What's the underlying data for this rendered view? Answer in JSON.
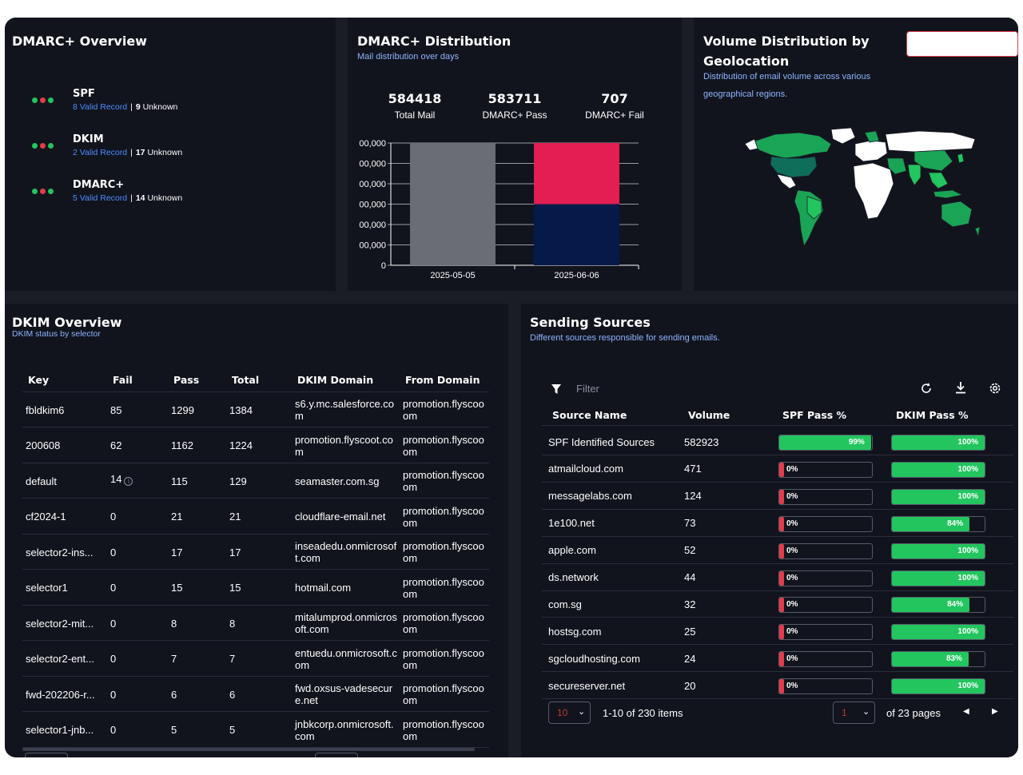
{
  "overview": {
    "title": "DMARC+ Overview",
    "items": [
      {
        "name": "SPF",
        "valid": "8 Valid Record",
        "unknown_count": "9",
        "unknown_label": "Unknown"
      },
      {
        "name": "DKIM",
        "valid": "2 Valid Record",
        "unknown_count": "17",
        "unknown_label": "Unknown"
      },
      {
        "name": "DMARC+",
        "valid": "5 Valid Record",
        "unknown_count": "14",
        "unknown_label": "Unknown"
      }
    ],
    "dot_colors": [
      "#22c55e",
      "#e23c4a",
      "#22c55e"
    ]
  },
  "distribution": {
    "title": "DMARC+ Distribution",
    "subtitle": "Mail distribution over days",
    "stats": [
      {
        "value": "584418",
        "label": "Total Mail"
      },
      {
        "value": "583711",
        "label": "DMARC+ Pass"
      },
      {
        "value": "707",
        "label": "DMARC+ Fail"
      }
    ]
  },
  "chart_data": {
    "type": "bar",
    "categories": [
      "2025-05-05",
      "2025-06-06"
    ],
    "series": [
      {
        "values": [
          600000,
          0
        ],
        "color": "#6b6d75"
      },
      {
        "values": [
          0,
          300000
        ],
        "color": "#061a4a"
      },
      {
        "values": [
          0,
          300000
        ],
        "color": "#e21e52"
      }
    ],
    "yticks": [
      "0",
      "00,000",
      "00,000",
      "00,000",
      "00,000",
      "00,000",
      "00,000"
    ],
    "ylim": [
      0,
      600000
    ],
    "stacked": true
  },
  "geo": {
    "title_line1": "Volume Distribution by",
    "title_line2": "Geolocation",
    "subtitle_line1": "Distribution of email volume across various",
    "subtitle_line2": "geographical regions."
  },
  "dkim": {
    "title": "DKIM Overview",
    "subtitle": "DKIM status by selector",
    "headers": [
      "Key",
      "Fail",
      "Pass",
      "Total",
      "DKIM Domain",
      "From Domain"
    ],
    "rows": [
      [
        "fbldkim6",
        "85",
        "1299",
        "1384",
        "s6.y.mc.salesforce.com",
        "promotion.flyscoo om"
      ],
      [
        "200608",
        "62",
        "1162",
        "1224",
        "promotion.flyscoot.com",
        "promotion.flyscoo om"
      ],
      [
        "default",
        "14",
        "115",
        "129",
        "seamaster.com.sg",
        "promotion.flyscoo om"
      ],
      [
        "cf2024-1",
        "0",
        "21",
        "21",
        "cloudflare-email.net",
        "promotion.flyscoo om"
      ],
      [
        "selector2-ins...",
        "0",
        "17",
        "17",
        "inseadedu.onmicrosoft.com",
        "promotion.flyscoo om"
      ],
      [
        "selector1",
        "0",
        "15",
        "15",
        "hotmail.com",
        "promotion.flyscoo om"
      ],
      [
        "selector2-mit...",
        "0",
        "8",
        "8",
        "mitalumprod.onmicrosoft.com",
        "promotion.flyscoo om"
      ],
      [
        "selector2-ent...",
        "0",
        "7",
        "7",
        "entuedu.onmicrosoft.com",
        "promotion.flyscoo om"
      ],
      [
        "fwd-202206-r...",
        "0",
        "6",
        "6",
        "fwd.oxsus-vadesecure.net",
        "promotion.flyscoo om"
      ],
      [
        "selector1-jnb...",
        "0",
        "5",
        "5",
        "jnbkcorp.onmicrosoft.com",
        "promotion.flyscoo om"
      ]
    ]
  },
  "sources": {
    "title": "Sending Sources",
    "subtitle": "Different sources responsible for sending emails.",
    "filter_placeholder": "Filter",
    "headers": [
      "Source Name",
      "Volume",
      "SPF Pass %",
      "DKIM Pass %"
    ],
    "rows": [
      {
        "name": "SPF Identified Sources",
        "volume": "582923",
        "spf": 99,
        "spf_label": "99%",
        "dkim": 100,
        "dkim_label": "100%"
      },
      {
        "name": "atmailcloud.com",
        "volume": "471",
        "spf": 0,
        "spf_label": "0%",
        "dkim": 100,
        "dkim_label": "100%"
      },
      {
        "name": "messagelabs.com",
        "volume": "124",
        "spf": 0,
        "spf_label": "0%",
        "dkim": 100,
        "dkim_label": "100%"
      },
      {
        "name": "1e100.net",
        "volume": "73",
        "spf": 0,
        "spf_label": "0%",
        "dkim": 84,
        "dkim_label": "84%"
      },
      {
        "name": "apple.com",
        "volume": "52",
        "spf": 0,
        "spf_label": "0%",
        "dkim": 100,
        "dkim_label": "100%"
      },
      {
        "name": "ds.network",
        "volume": "44",
        "spf": 0,
        "spf_label": "0%",
        "dkim": 100,
        "dkim_label": "100%"
      },
      {
        "name": "com.sg",
        "volume": "32",
        "spf": 0,
        "spf_label": "0%",
        "dkim": 84,
        "dkim_label": "84%"
      },
      {
        "name": "hostsg.com",
        "volume": "25",
        "spf": 0,
        "spf_label": "0%",
        "dkim": 100,
        "dkim_label": "100%"
      },
      {
        "name": "sgcloudhosting.com",
        "volume": "24",
        "spf": 0,
        "spf_label": "0%",
        "dkim": 83,
        "dkim_label": "83%"
      },
      {
        "name": "secureserver.net",
        "volume": "20",
        "spf": 0,
        "spf_label": "0%",
        "dkim": 100,
        "dkim_label": "100%"
      }
    ],
    "page_size": "10",
    "items_text": "1-10 of 230 items",
    "page": "1",
    "pages_text": "of 23 pages",
    "pass_color": "#22c55e",
    "fail_color": "#e23c4a"
  }
}
